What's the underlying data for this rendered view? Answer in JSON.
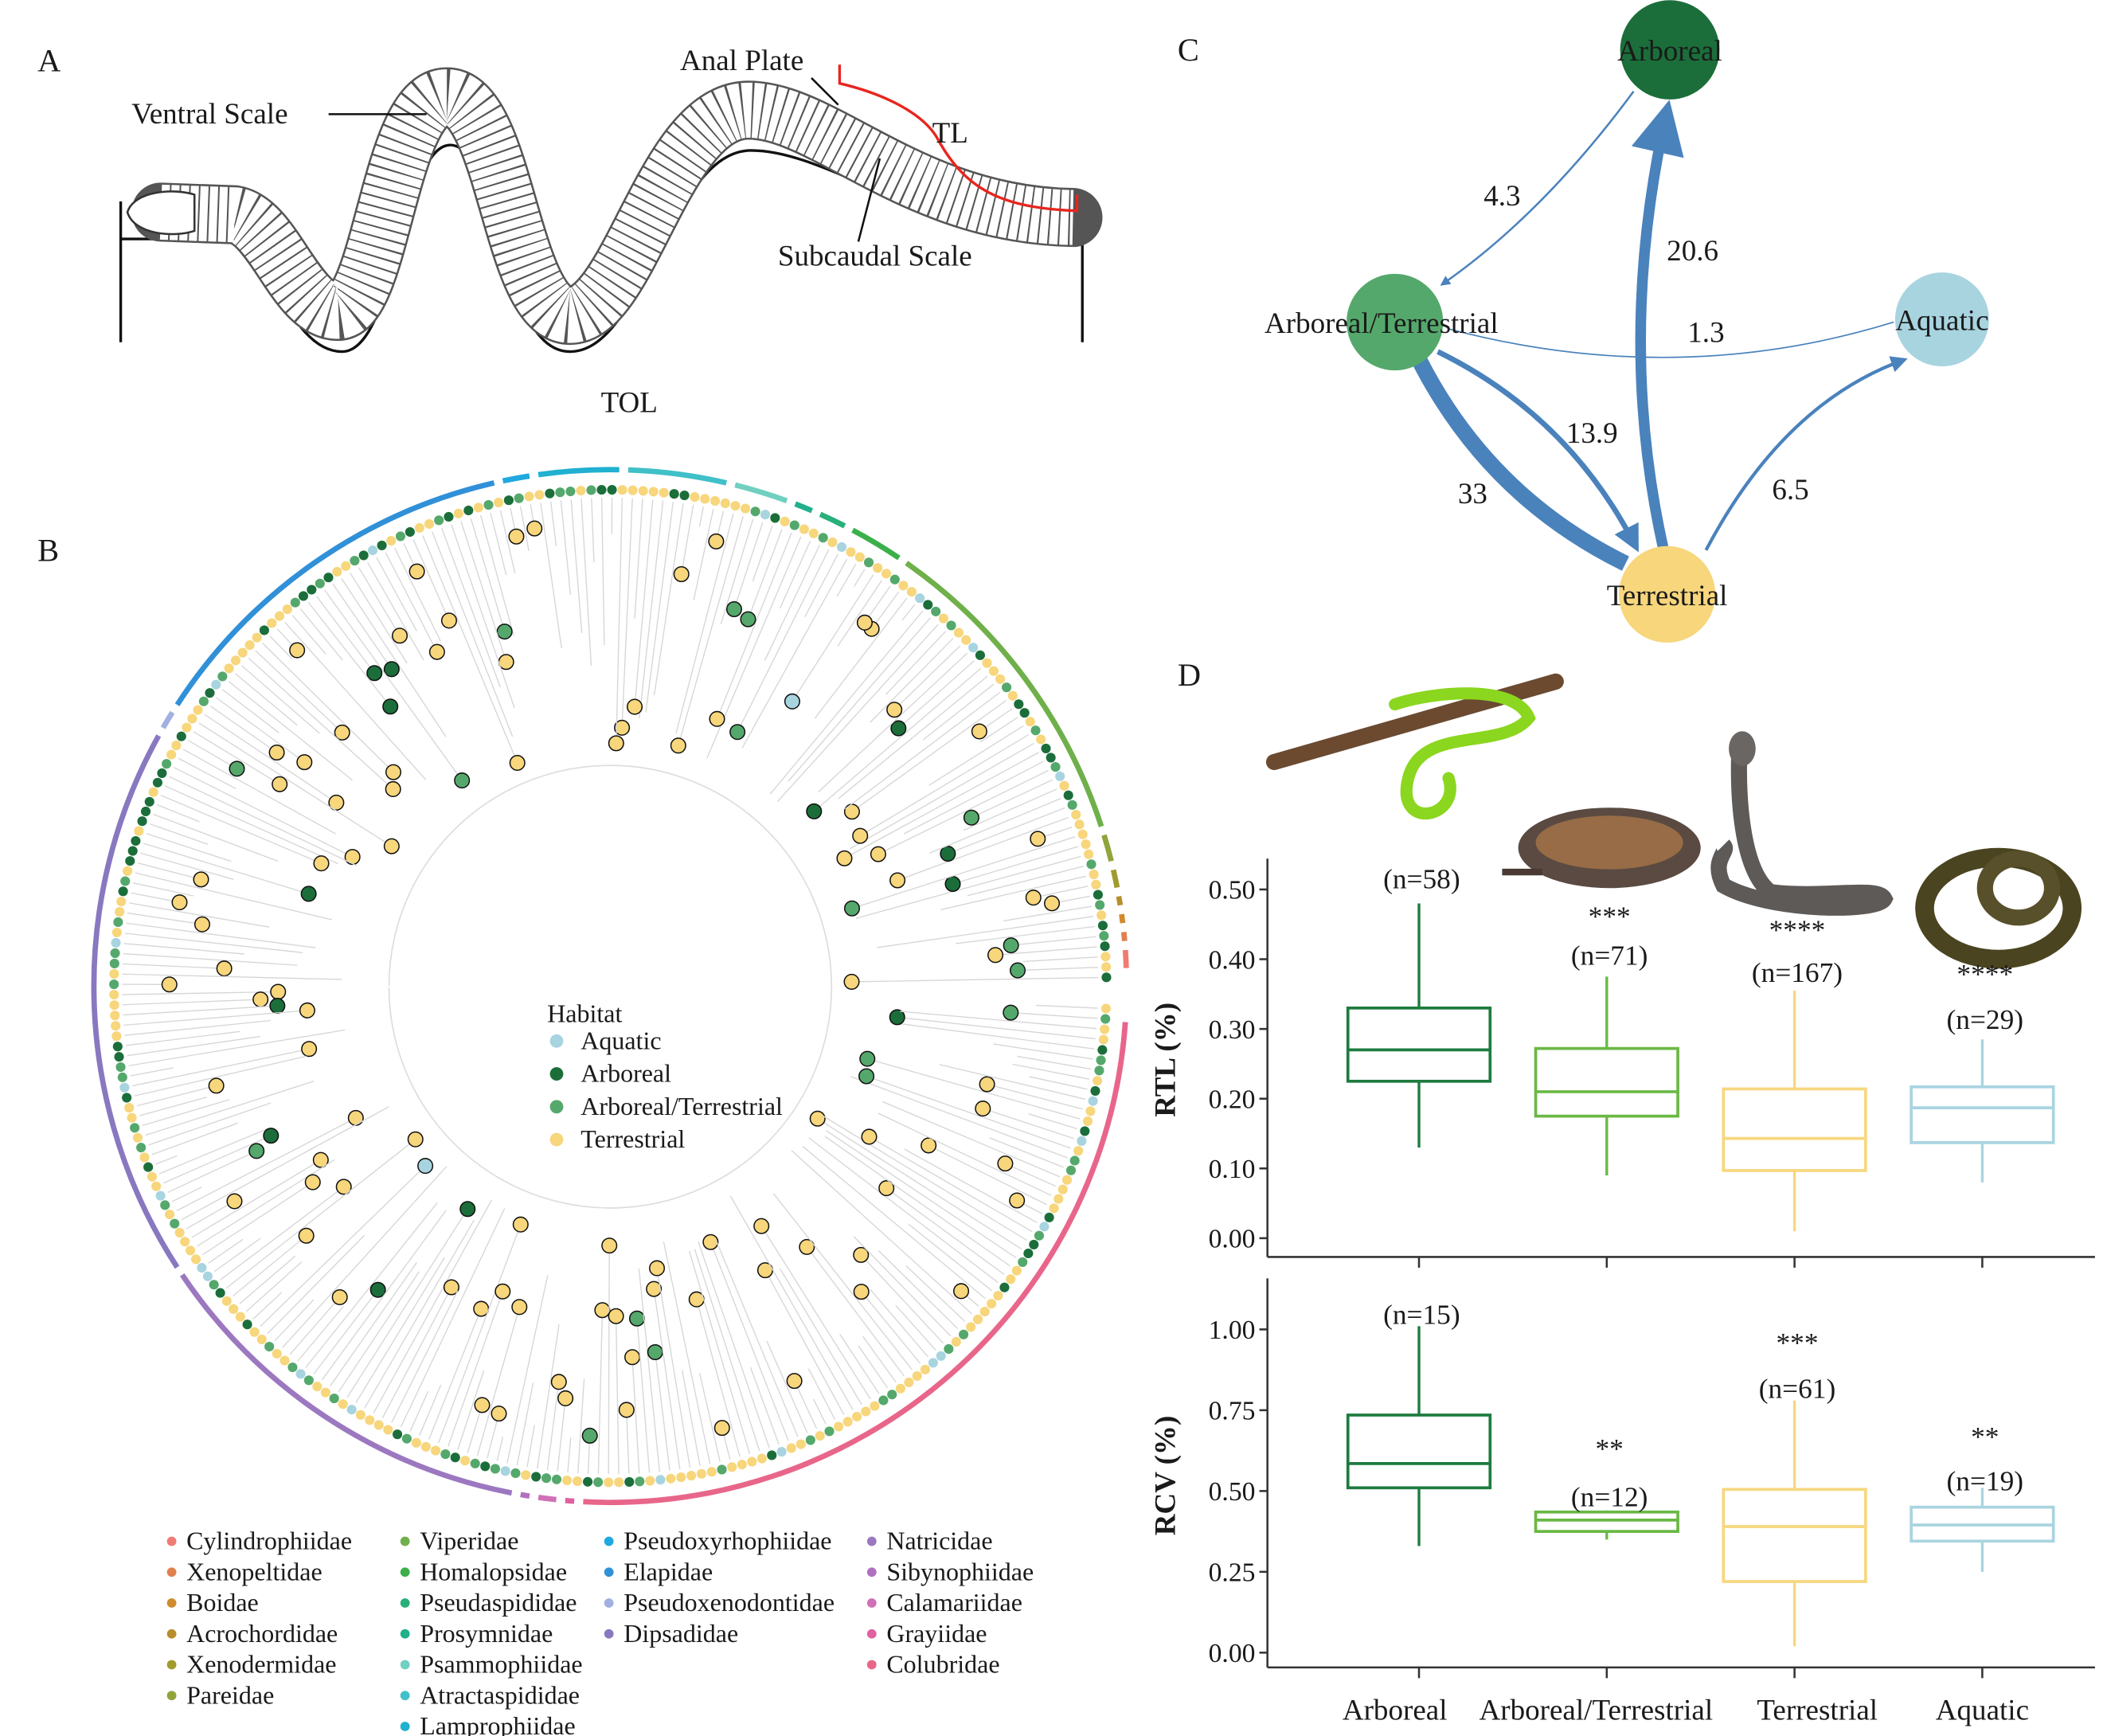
{
  "panels": {
    "a": "A",
    "b": "B",
    "c": "C",
    "d": "D"
  },
  "panel_a": {
    "ventral_scale": "Ventral Scale",
    "anal_plate": "Anal Plate",
    "tl": "TL",
    "subcaudal_scale": "Subcaudal Scale",
    "tol": "TOL",
    "tl_color": "#e8251f"
  },
  "panel_b": {
    "habitat_legend": {
      "title": "Habitat",
      "items": [
        {
          "label": "Aquatic",
          "color": "#a8d4e0"
        },
        {
          "label": "Arboreal",
          "color": "#1b6e3a"
        },
        {
          "label": "Arboreal/Terrestrial",
          "color": "#55a86c"
        },
        {
          "label": "Terrestrial",
          "color": "#f7d67c"
        }
      ]
    },
    "families": [
      {
        "name": "Cylindrophiidae",
        "color": "#f07b72"
      },
      {
        "name": "Xenopeltidae",
        "color": "#e0804f"
      },
      {
        "name": "Boidae",
        "color": "#d08b2d"
      },
      {
        "name": "Acrochordidae",
        "color": "#b88e2c"
      },
      {
        "name": "Xenodermidae",
        "color": "#a29a2d"
      },
      {
        "name": "Pareidae",
        "color": "#8fa43a"
      },
      {
        "name": "Viperidae",
        "color": "#6fb04a"
      },
      {
        "name": "Homalopsidae",
        "color": "#3bb04a"
      },
      {
        "name": "Pseudaspididae",
        "color": "#28b07a"
      },
      {
        "name": "Prosymnidae",
        "color": "#20b08a"
      },
      {
        "name": "Psammophiidae",
        "color": "#6fd0c0"
      },
      {
        "name": "Atractaspididae",
        "color": "#40c0c8"
      },
      {
        "name": "Lamprophiidae",
        "color": "#20b0d0"
      },
      {
        "name": "Pseudoxyrhophiidae",
        "color": "#20a8e0"
      },
      {
        "name": "Elapidae",
        "color": "#3090d8"
      },
      {
        "name": "Pseudoxenodontidae",
        "color": "#a0b0e0"
      },
      {
        "name": "Dipsadidae",
        "color": "#8878c0"
      },
      {
        "name": "Natricidae",
        "color": "#9c78c0"
      },
      {
        "name": "Sibynophiidae",
        "color": "#b070c0"
      },
      {
        "name": "Calamariidae",
        "color": "#d070b8"
      },
      {
        "name": "Grayiidae",
        "color": "#e060a0"
      },
      {
        "name": "Colubridae",
        "color": "#e8668a"
      }
    ]
  },
  "panel_c": {
    "nodes": [
      {
        "id": "arboreal",
        "label": "Arboreal",
        "color": "#1b6e3a"
      },
      {
        "id": "arb_terr",
        "label": "Arboreal/Terrestrial",
        "color": "#55a86c"
      },
      {
        "id": "aquatic",
        "label": "Aquatic",
        "color": "#a8d4e0"
      },
      {
        "id": "terrestrial",
        "label": "Terrestrial",
        "color": "#f7d67c"
      }
    ],
    "edges": [
      {
        "from": "arboreal",
        "to": "arb_terr",
        "rate": "4.3"
      },
      {
        "from": "terrestrial",
        "to": "arboreal",
        "rate": "20.6"
      },
      {
        "from": "arb_terr",
        "to": "aquatic",
        "rate": "1.3"
      },
      {
        "from": "arb_terr",
        "to": "terrestrial",
        "rate": "13.9"
      },
      {
        "from": "terrestrial",
        "to": "arb_terr",
        "rate": "33"
      },
      {
        "from": "terrestrial",
        "to": "aquatic",
        "rate": "6.5"
      }
    ],
    "edge_color": "#4a82bc"
  },
  "chart_data": [
    {
      "type": "box",
      "ylabel": "RTL (%)",
      "categories": [
        "Arboreal",
        "Arboreal/Terrestrial",
        "Terrestrial",
        "Aquatic"
      ],
      "colors": [
        "#1e7b3f",
        "#6ab845",
        "#f7d77e",
        "#a9d4e0"
      ],
      "ylim": [
        0,
        0.5
      ],
      "yticks": [
        "0.00",
        "0.10",
        "0.20",
        "0.30",
        "0.40",
        "0.50"
      ],
      "boxes": [
        {
          "min": 0.13,
          "q1": 0.225,
          "median": 0.27,
          "q3": 0.33,
          "max": 0.48,
          "n": "(n=58)",
          "sig": ""
        },
        {
          "min": 0.09,
          "q1": 0.175,
          "median": 0.21,
          "q3": 0.272,
          "max": 0.375,
          "n": "(n=71)",
          "sig": "***"
        },
        {
          "min": 0.01,
          "q1": 0.097,
          "median": 0.143,
          "q3": 0.214,
          "max": 0.355,
          "n": "(n=167)",
          "sig": "****"
        },
        {
          "min": 0.08,
          "q1": 0.137,
          "median": 0.187,
          "q3": 0.217,
          "max": 0.285,
          "n": "(n=29)",
          "sig": "****"
        }
      ]
    },
    {
      "type": "box",
      "ylabel": "RCV (%)",
      "categories": [
        "Arboreal",
        "Arboreal/Terrestrial",
        "Terrestrial",
        "Aquatic"
      ],
      "colors": [
        "#1e7b3f",
        "#6ab845",
        "#f7d77e",
        "#a9d4e0"
      ],
      "ylim": [
        0,
        1.0
      ],
      "yticks": [
        "0.00",
        "0.25",
        "0.50",
        "0.75",
        "1.00"
      ],
      "boxes": [
        {
          "min": 0.33,
          "q1": 0.51,
          "median": 0.585,
          "q3": 0.735,
          "max": 1.01,
          "n": "(n=15)",
          "sig": ""
        },
        {
          "min": 0.35,
          "q1": 0.375,
          "median": 0.41,
          "q3": 0.435,
          "max": 0.44,
          "n": "(n=12)",
          "sig": "**"
        },
        {
          "min": 0.02,
          "q1": 0.22,
          "median": 0.39,
          "q3": 0.505,
          "max": 0.78,
          "n": "(n=61)",
          "sig": "***"
        },
        {
          "min": 0.25,
          "q1": 0.345,
          "median": 0.395,
          "q3": 0.45,
          "max": 0.51,
          "n": "(n=19)",
          "sig": "**"
        }
      ]
    }
  ]
}
